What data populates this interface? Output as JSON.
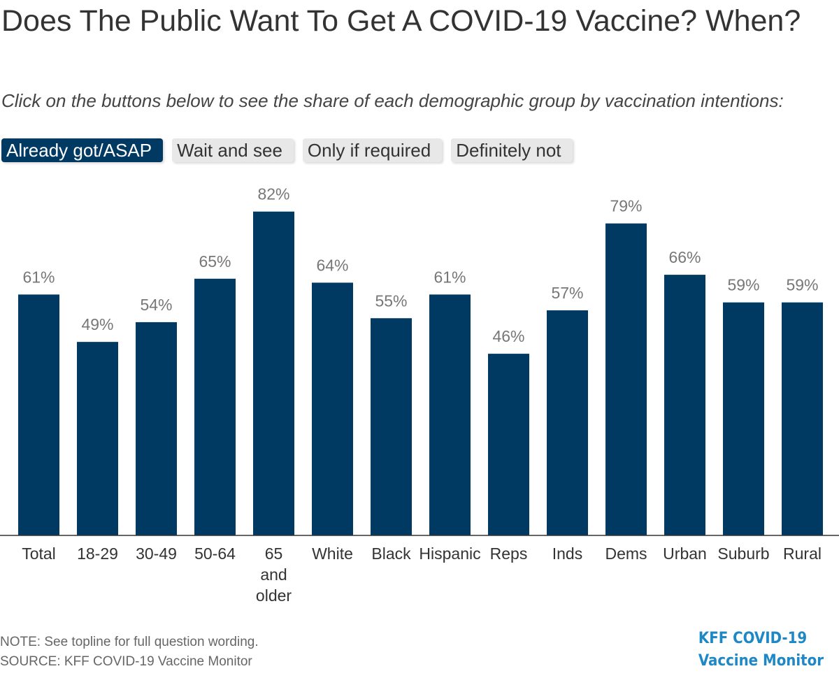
{
  "title": "Does The Public Want To Get A COVID-19 Vaccine? When?",
  "subtitle": "Click on the buttons below to see the share of each demographic group by vaccination intentions:",
  "buttons": [
    {
      "label": "Already got/ASAP",
      "active": true
    },
    {
      "label": "Wait and see",
      "active": false
    },
    {
      "label": "Only if required",
      "active": false
    },
    {
      "label": "Definitely not",
      "active": false
    }
  ],
  "colors": {
    "bar": "#003a63",
    "label": "#777777",
    "axis": "#333333"
  },
  "chart_data": {
    "type": "bar",
    "categories": [
      "Total",
      "18-29",
      "30-49",
      "50-64",
      "65 and older",
      "White",
      "Black",
      "Hispanic",
      "Reps",
      "Inds",
      "Dems",
      "Urban",
      "Suburb",
      "Rural"
    ],
    "values": [
      61,
      49,
      54,
      65,
      82,
      64,
      55,
      61,
      46,
      57,
      79,
      66,
      59,
      59
    ],
    "data_labels": [
      "61%",
      "49%",
      "54%",
      "65%",
      "82%",
      "64%",
      "55%",
      "61%",
      "46%",
      "57%",
      "79%",
      "66%",
      "59%",
      "59%"
    ],
    "ylim": [
      0,
      100
    ],
    "grid": false,
    "legend": "none"
  },
  "footer": {
    "note": "NOTE: See topline for full question wording.",
    "source": "SOURCE: KFF COVID-19 Vaccine Monitor",
    "logo_line1": "KFF COVID-19",
    "logo_line2": "Vaccine Monitor"
  }
}
